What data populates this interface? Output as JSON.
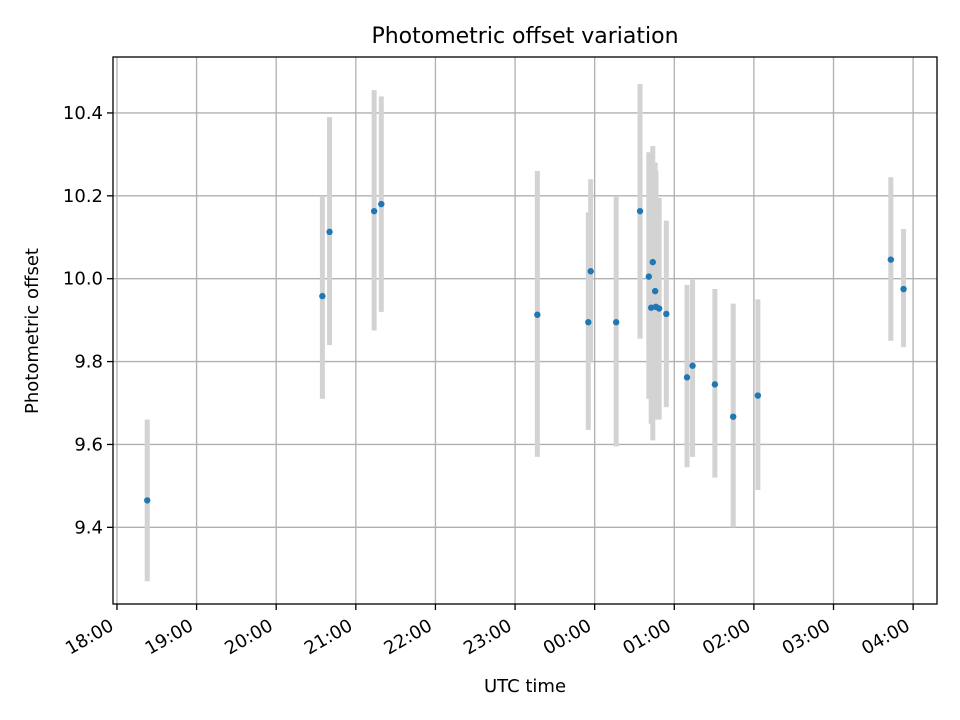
{
  "chart_data": {
    "type": "scatter",
    "title": "Photometric offset variation",
    "xlabel": "UTC time",
    "ylabel": "Photometric offset",
    "grid": true,
    "xlim": [
      -0.05,
      10.3
    ],
    "ylim": [
      9.215,
      10.535
    ],
    "x_ticks": [
      {
        "value": 0,
        "label": "18:00"
      },
      {
        "value": 1,
        "label": "19:00"
      },
      {
        "value": 2,
        "label": "20:00"
      },
      {
        "value": 3,
        "label": "21:00"
      },
      {
        "value": 4,
        "label": "22:00"
      },
      {
        "value": 5,
        "label": "23:00"
      },
      {
        "value": 6,
        "label": "00:00"
      },
      {
        "value": 7,
        "label": "01:00"
      },
      {
        "value": 8,
        "label": "02:00"
      },
      {
        "value": 9,
        "label": "03:00"
      },
      {
        "value": 10,
        "label": "04:00"
      }
    ],
    "y_ticks": [
      {
        "value": 9.4,
        "label": "9.4"
      },
      {
        "value": 9.6,
        "label": "9.6"
      },
      {
        "value": 9.8,
        "label": "9.8"
      },
      {
        "value": 10.0,
        "label": "10.0"
      },
      {
        "value": 10.2,
        "label": "10.2"
      },
      {
        "value": 10.4,
        "label": "10.4"
      }
    ],
    "marker_color": "#1f77b4",
    "errorbar_color": "#d3d3d3",
    "points": [
      {
        "x": 0.38,
        "y": 9.465,
        "ylow": 9.27,
        "yhigh": 9.66
      },
      {
        "x": 2.58,
        "y": 9.958,
        "ylow": 9.71,
        "yhigh": 10.2
      },
      {
        "x": 2.67,
        "y": 10.113,
        "ylow": 9.84,
        "yhigh": 10.39
      },
      {
        "x": 3.23,
        "y": 10.163,
        "ylow": 9.875,
        "yhigh": 10.455
      },
      {
        "x": 3.32,
        "y": 10.18,
        "ylow": 9.92,
        "yhigh": 10.44
      },
      {
        "x": 5.28,
        "y": 9.913,
        "ylow": 9.57,
        "yhigh": 10.26
      },
      {
        "x": 5.92,
        "y": 9.895,
        "ylow": 9.635,
        "yhigh": 10.16
      },
      {
        "x": 5.95,
        "y": 10.018,
        "ylow": 9.8,
        "yhigh": 10.24
      },
      {
        "x": 6.27,
        "y": 9.895,
        "ylow": 9.595,
        "yhigh": 10.2
      },
      {
        "x": 6.57,
        "y": 10.163,
        "ylow": 9.855,
        "yhigh": 10.47
      },
      {
        "x": 6.68,
        "y": 10.005,
        "ylow": 9.71,
        "yhigh": 10.305
      },
      {
        "x": 6.71,
        "y": 9.93,
        "ylow": 9.65,
        "yhigh": 10.22
      },
      {
        "x": 6.73,
        "y": 10.04,
        "ylow": 9.61,
        "yhigh": 10.32
      },
      {
        "x": 6.76,
        "y": 9.97,
        "ylow": 9.66,
        "yhigh": 10.28
      },
      {
        "x": 6.77,
        "y": 9.932,
        "ylow": 9.72,
        "yhigh": 10.26
      },
      {
        "x": 6.81,
        "y": 9.928,
        "ylow": 9.66,
        "yhigh": 10.195
      },
      {
        "x": 6.9,
        "y": 9.915,
        "ylow": 9.69,
        "yhigh": 10.14
      },
      {
        "x": 7.16,
        "y": 9.762,
        "ylow": 9.545,
        "yhigh": 9.985
      },
      {
        "x": 7.23,
        "y": 9.79,
        "ylow": 9.57,
        "yhigh": 10.0
      },
      {
        "x": 7.51,
        "y": 9.745,
        "ylow": 9.52,
        "yhigh": 9.975
      },
      {
        "x": 7.74,
        "y": 9.667,
        "ylow": 9.4,
        "yhigh": 9.94
      },
      {
        "x": 8.05,
        "y": 9.718,
        "ylow": 9.49,
        "yhigh": 9.95
      },
      {
        "x": 9.72,
        "y": 10.046,
        "ylow": 9.85,
        "yhigh": 10.245
      },
      {
        "x": 9.88,
        "y": 9.975,
        "ylow": 9.835,
        "yhigh": 10.12
      }
    ]
  }
}
